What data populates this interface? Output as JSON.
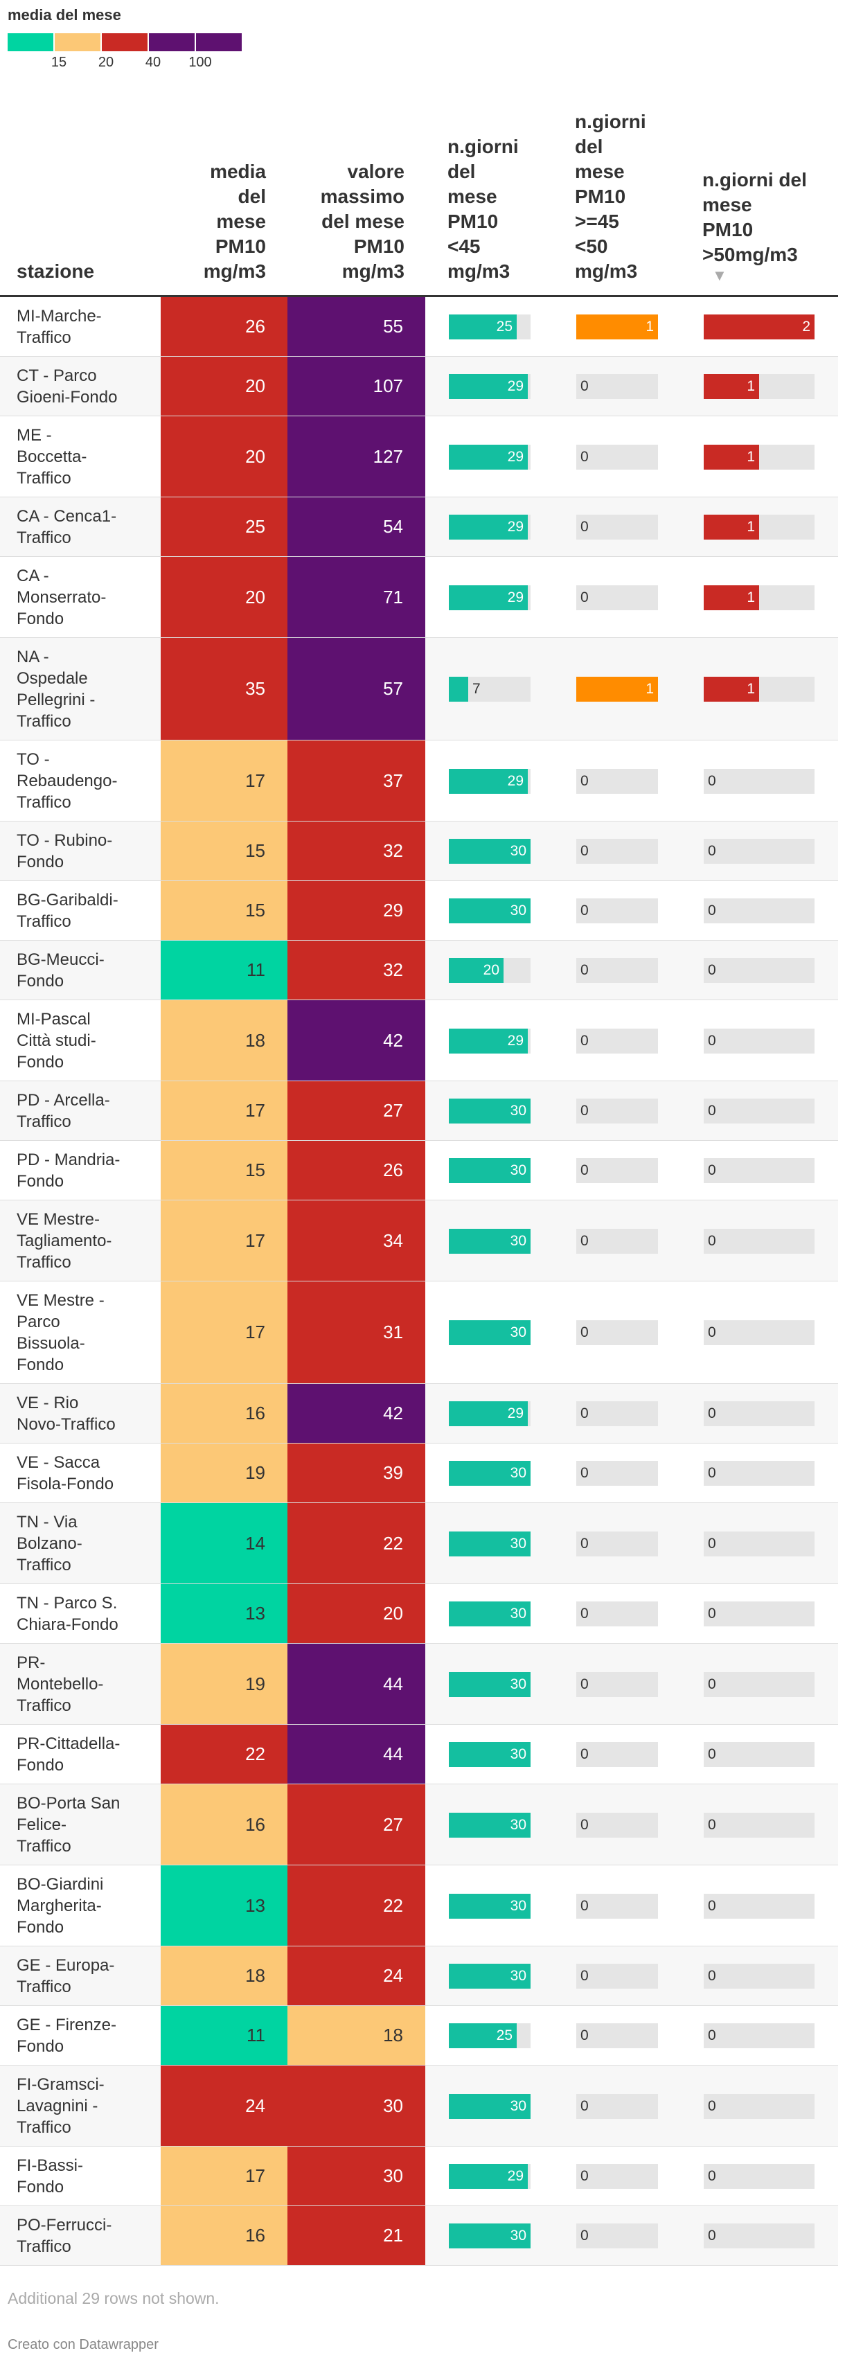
{
  "legend": {
    "title": "media del mese",
    "ticks": [
      "15",
      "20",
      "40",
      "100"
    ],
    "colors": [
      "#00d4a1",
      "#fcc876",
      "#c92a24",
      "#5e1170"
    ]
  },
  "columns": {
    "station": "stazione",
    "mean": "media\ndel\nmese\nPM10\nmg/m3",
    "max": "valore\nmassimo\ndel mese\nPM10\nmg/m3",
    "days_lt45": "n.giorni\ndel\nmese\nPM10\n<45\nmg/m3",
    "days_45_50": "n.giorni\ndel\nmese\nPM10\n>=45\n<50\nmg/m3",
    "days_gt50": "n.giorni del\nmese\nPM10\n>50mg/m3"
  },
  "sort_arrow": "▼",
  "bar_colors": {
    "lt45": "#14bfa0",
    "mid": "#ff8c00",
    "gt50": "#c92a24"
  },
  "chart_data": {
    "type": "table",
    "rows": [
      {
        "station": "MI-Marche-\nTraffico",
        "mean": 26,
        "max": 55,
        "lt45": 25,
        "mid": 1,
        "gt50": 2
      },
      {
        "station": "CT - Parco\nGioeni-Fondo",
        "mean": 20,
        "max": 107,
        "lt45": 29,
        "mid": 0,
        "gt50": 1
      },
      {
        "station": "ME -\nBoccetta-\nTraffico",
        "mean": 20,
        "max": 127,
        "lt45": 29,
        "mid": 0,
        "gt50": 1
      },
      {
        "station": "CA - Cenca1-\nTraffico",
        "mean": 25,
        "max": 54,
        "lt45": 29,
        "mid": 0,
        "gt50": 1
      },
      {
        "station": "CA -\nMonserrato-\nFondo",
        "mean": 20,
        "max": 71,
        "lt45": 29,
        "mid": 0,
        "gt50": 1
      },
      {
        "station": "NA -\nOspedale\nPellegrini -\nTraffico",
        "mean": 35,
        "max": 57,
        "lt45": 7,
        "mid": 1,
        "gt50": 1
      },
      {
        "station": "TO -\nRebaudengo-\nTraffico",
        "mean": 17,
        "max": 37,
        "lt45": 29,
        "mid": 0,
        "gt50": 0
      },
      {
        "station": "TO - Rubino-\nFondo",
        "mean": 15,
        "max": 32,
        "lt45": 30,
        "mid": 0,
        "gt50": 0
      },
      {
        "station": "BG-Garibaldi-\nTraffico",
        "mean": 15,
        "max": 29,
        "lt45": 30,
        "mid": 0,
        "gt50": 0
      },
      {
        "station": "BG-Meucci-\nFondo",
        "mean": 11,
        "max": 32,
        "lt45": 20,
        "mid": 0,
        "gt50": 0
      },
      {
        "station": "MI-Pascal\nCittà studi-\nFondo",
        "mean": 18,
        "max": 42,
        "lt45": 29,
        "mid": 0,
        "gt50": 0
      },
      {
        "station": "PD - Arcella-\nTraffico",
        "mean": 17,
        "max": 27,
        "lt45": 30,
        "mid": 0,
        "gt50": 0
      },
      {
        "station": "PD - Mandria-\nFondo",
        "mean": 15,
        "max": 26,
        "lt45": 30,
        "mid": 0,
        "gt50": 0
      },
      {
        "station": "VE Mestre-\nTagliamento-\nTraffico",
        "mean": 17,
        "max": 34,
        "lt45": 30,
        "mid": 0,
        "gt50": 0
      },
      {
        "station": "VE Mestre -\nParco\nBissuola-\nFondo",
        "mean": 17,
        "max": 31,
        "lt45": 30,
        "mid": 0,
        "gt50": 0
      },
      {
        "station": "VE - Rio\nNovo-Traffico",
        "mean": 16,
        "max": 42,
        "lt45": 29,
        "mid": 0,
        "gt50": 0
      },
      {
        "station": "VE - Sacca\nFisola-Fondo",
        "mean": 19,
        "max": 39,
        "lt45": 30,
        "mid": 0,
        "gt50": 0
      },
      {
        "station": "TN - Via\nBolzano-\nTraffico",
        "mean": 14,
        "max": 22,
        "lt45": 30,
        "mid": 0,
        "gt50": 0
      },
      {
        "station": "TN - Parco S.\nChiara-Fondo",
        "mean": 13,
        "max": 20,
        "lt45": 30,
        "mid": 0,
        "gt50": 0
      },
      {
        "station": "PR-\nMontebello-\nTraffico",
        "mean": 19,
        "max": 44,
        "lt45": 30,
        "mid": 0,
        "gt50": 0
      },
      {
        "station": "PR-Cittadella-\nFondo",
        "mean": 22,
        "max": 44,
        "lt45": 30,
        "mid": 0,
        "gt50": 0
      },
      {
        "station": "BO-Porta San\nFelice-\nTraffico",
        "mean": 16,
        "max": 27,
        "lt45": 30,
        "mid": 0,
        "gt50": 0
      },
      {
        "station": "BO-Giardini\nMargherita-\nFondo",
        "mean": 13,
        "max": 22,
        "lt45": 30,
        "mid": 0,
        "gt50": 0
      },
      {
        "station": "GE - Europa-\nTraffico",
        "mean": 18,
        "max": 24,
        "lt45": 30,
        "mid": 0,
        "gt50": 0
      },
      {
        "station": "GE - Firenze-\nFondo",
        "mean": 11,
        "max": 18,
        "lt45": 25,
        "mid": 0,
        "gt50": 0
      },
      {
        "station": "FI-Gramsci-\nLavagnini -\nTraffico",
        "mean": 24,
        "max": 30,
        "lt45": 30,
        "mid": 0,
        "gt50": 0
      },
      {
        "station": "FI-Bassi-\nFondo",
        "mean": 17,
        "max": 30,
        "lt45": 29,
        "mid": 0,
        "gt50": 0
      },
      {
        "station": "PO-Ferrucci-\nTraffico",
        "mean": 16,
        "max": 21,
        "lt45": 30,
        "mid": 0,
        "gt50": 0
      }
    ]
  },
  "footer_note": "Additional 29 rows not shown.",
  "credit": "Creato con Datawrapper"
}
